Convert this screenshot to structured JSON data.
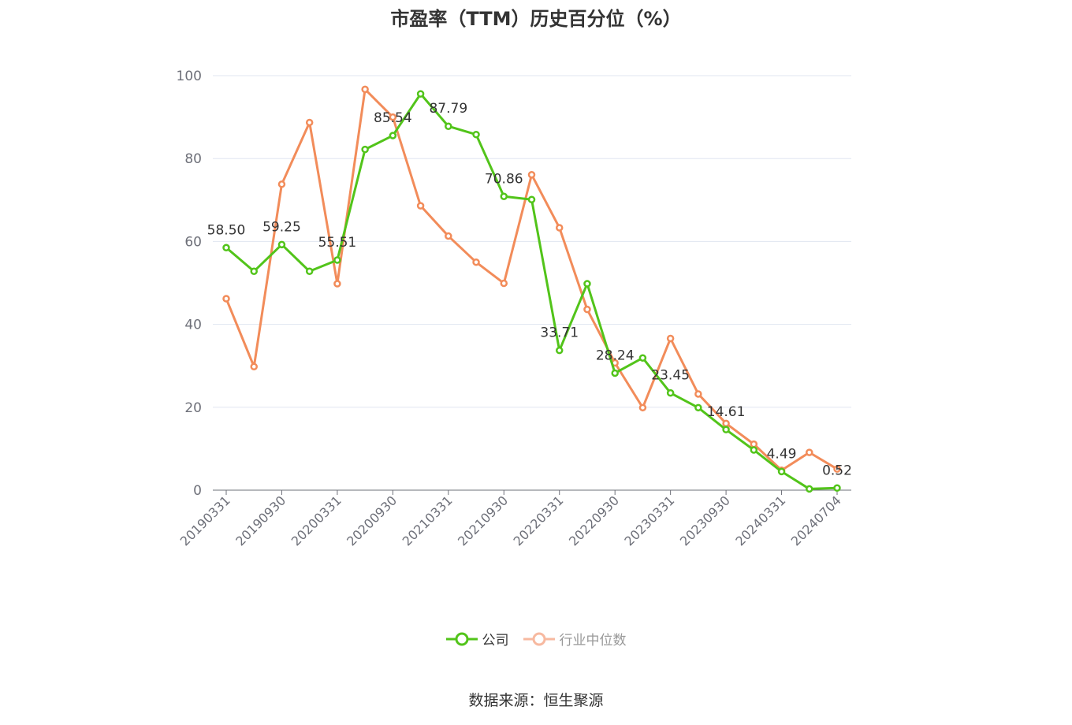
{
  "title": "市盈率（TTM）历史百分位（%）",
  "source": "数据来源：恒生聚源",
  "legend": {
    "company": "公司",
    "industry": "行业中位数"
  },
  "colors": {
    "company": "#52c41a",
    "industry": "#f28c5a",
    "industry_legend": "#f7b9a0",
    "grid": "#e0e6f1",
    "axis": "#6e7079"
  },
  "chart_data": {
    "type": "line",
    "title": "市盈率（TTM）历史百分位（%）",
    "xlabel": "",
    "ylabel": "",
    "ylim": [
      0,
      100
    ],
    "y_ticks": [
      0,
      20,
      40,
      60,
      80,
      100
    ],
    "grid": true,
    "legend_position": "bottom",
    "x": [
      "20190331",
      "20190630",
      "20190930",
      "20191231",
      "20200331",
      "20200630",
      "20200930",
      "20201231",
      "20210331",
      "20210630",
      "20210930",
      "20211231",
      "20220331",
      "20220630",
      "20220930",
      "20221231",
      "20230331",
      "20230630",
      "20230930",
      "20231231",
      "20240331",
      "20240630",
      "20240704"
    ],
    "x_tick_labels": [
      "20190331",
      "20190930",
      "20200331",
      "20200930",
      "20210331",
      "20210930",
      "20220331",
      "20220930",
      "20230331",
      "20230930",
      "20240331",
      "20240704"
    ],
    "series": [
      {
        "name": "公司",
        "values": [
          58.5,
          52.8,
          59.25,
          52.8,
          55.51,
          82.2,
          85.54,
          95.6,
          87.79,
          85.8,
          70.86,
          70.1,
          33.71,
          49.8,
          28.24,
          31.9,
          23.45,
          19.9,
          14.61,
          9.7,
          4.49,
          0.3,
          0.52
        ],
        "labels": {
          "0": "58.50",
          "2": "59.25",
          "4": "55.51",
          "6": "85.54",
          "8": "87.79",
          "10": "70.86",
          "12": "33.71",
          "14": "28.24",
          "16": "23.45",
          "18": "14.61",
          "20": "4.49",
          "22": "0.52"
        }
      },
      {
        "name": "行业中位数",
        "values": [
          46.2,
          29.8,
          73.8,
          88.7,
          49.8,
          96.7,
          90.0,
          68.6,
          61.3,
          55.0,
          49.9,
          76.1,
          63.3,
          43.6,
          30.7,
          19.9,
          36.6,
          23.2,
          16.1,
          11.1,
          4.8,
          9.1,
          5.1
        ]
      }
    ]
  }
}
